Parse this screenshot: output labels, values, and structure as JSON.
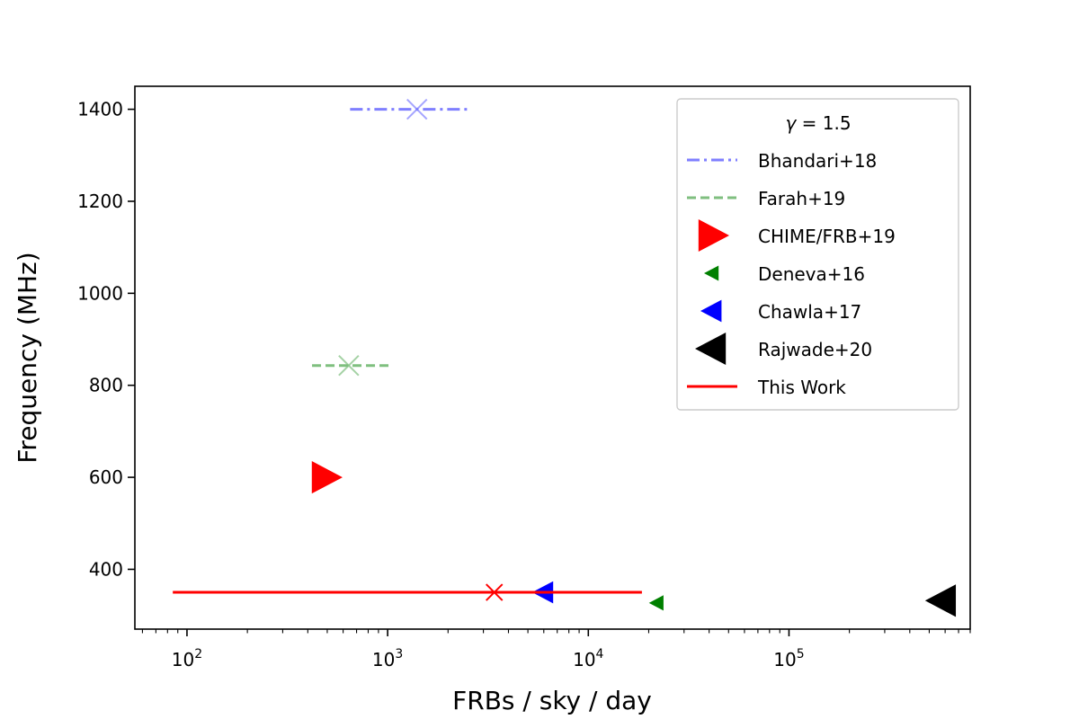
{
  "chart_data": {
    "type": "scatter",
    "xlabel": "FRBs / sky / day",
    "ylabel": "Frequency (MHz)",
    "xscale": "log",
    "xlim": [
      55,
      800000
    ],
    "ylim": [
      270,
      1450
    ],
    "x_major_ticks": [
      {
        "value": 100,
        "base": "10",
        "exp": "2"
      },
      {
        "value": 1000,
        "base": "10",
        "exp": "3"
      },
      {
        "value": 10000,
        "base": "10",
        "exp": "4"
      },
      {
        "value": 100000,
        "base": "10",
        "exp": "5"
      }
    ],
    "y_ticks": [
      400,
      600,
      800,
      1000,
      1200,
      1400
    ],
    "grid": false,
    "legend": {
      "title": "γ = 1.5",
      "title_symbol": "γ",
      "title_rest": " = 1.5",
      "placement": "upper right"
    },
    "series": [
      {
        "name": "Bhandari+18",
        "kind": "range",
        "color": "#7f7fff",
        "dash": "dashdot",
        "center": {
          "x": 1400,
          "y": 1400
        },
        "x_range": [
          650,
          2600
        ]
      },
      {
        "name": "Farah+19",
        "kind": "range",
        "color": "#7fbf7f",
        "dash": "dashed",
        "center": {
          "x": 640,
          "y": 843
        },
        "x_range": [
          420,
          1020
        ]
      },
      {
        "name": "CHIME/FRB+19",
        "kind": "marker",
        "marker": "triangle-right",
        "color": "#ff0000",
        "size": "large",
        "x": 490,
        "y": 600
      },
      {
        "name": "Deneva+16",
        "kind": "marker",
        "marker": "triangle-left",
        "color": "#008000",
        "size": "small",
        "x": 22000,
        "y": 327
      },
      {
        "name": "Chawla+17",
        "kind": "marker",
        "marker": "triangle-left",
        "color": "#0000ff",
        "size": "medium",
        "x": 6000,
        "y": 350
      },
      {
        "name": "Rajwade+20",
        "kind": "marker",
        "marker": "triangle-left",
        "color": "#000000",
        "size": "large",
        "x": 580000,
        "y": 332
      },
      {
        "name": "This Work",
        "kind": "range",
        "color": "#ff0000",
        "dash": "solid",
        "center": {
          "x": 3400,
          "y": 350
        },
        "x_range": [
          85,
          18500
        ]
      }
    ]
  }
}
